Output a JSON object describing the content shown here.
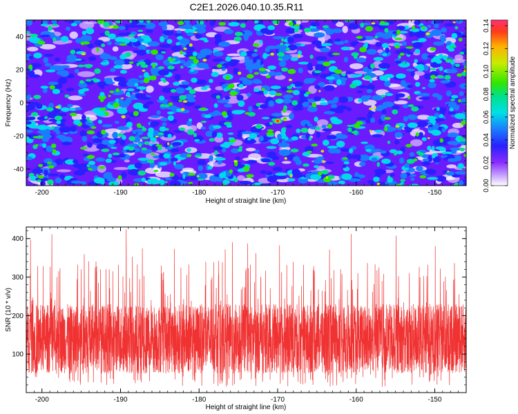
{
  "title": "C2E1.2026.040.10.35.R11",
  "chart_data": [
    {
      "type": "heatmap",
      "title": "C2E1.2026.040.10.35.R11",
      "xlabel": "Height of straight line (km)",
      "ylabel": "Frequency (Hz)",
      "xlim": [
        -202,
        -146
      ],
      "ylim": [
        -50,
        50
      ],
      "xticks": [
        -200,
        -190,
        -180,
        -170,
        -160,
        -150
      ],
      "xtick_labels": [
        "-200",
        "-190",
        "-180",
        "-170",
        "-160",
        "-150"
      ],
      "yticks": [
        -40,
        -20,
        0,
        20,
        40
      ],
      "ytick_labels": [
        "-40",
        "-20",
        "0",
        "20",
        "40"
      ],
      "colorbar": {
        "label": "Normalized spectral amplitude",
        "range": [
          0,
          0.145
        ],
        "ticks": [
          0,
          0.02,
          0.04,
          0.06,
          0.08,
          0.1,
          0.12,
          0.14
        ],
        "tick_labels": [
          "0.00",
          "0.02",
          "0.04",
          "0.06",
          "0.08",
          "0.10",
          "0.12",
          "0.14"
        ]
      },
      "grid": false,
      "note": "dense noise-like speckle field, mostly 0.01-0.06, isolated peaks up to ~0.14 near (-170 km, -11 Hz)"
    },
    {
      "type": "line",
      "xlabel": "Height of straight line (km)",
      "ylabel": "SNR (10 * v/v)",
      "xlim": [
        -202,
        -146
      ],
      "ylim": [
        0,
        430
      ],
      "xticks": [
        -200,
        -190,
        -180,
        -170,
        -160,
        -150
      ],
      "xtick_labels": [
        "-200",
        "-190",
        "-180",
        "-170",
        "-160",
        "-150"
      ],
      "yticks": [
        100,
        200,
        300,
        400
      ],
      "ytick_labels": [
        "100",
        "200",
        "300",
        "400"
      ],
      "series": [
        {
          "name": "SNR",
          "color": "#f03232",
          "mean": 140,
          "typical_range": [
            50,
            230
          ],
          "max": 430
        }
      ],
      "grid": false
    }
  ]
}
